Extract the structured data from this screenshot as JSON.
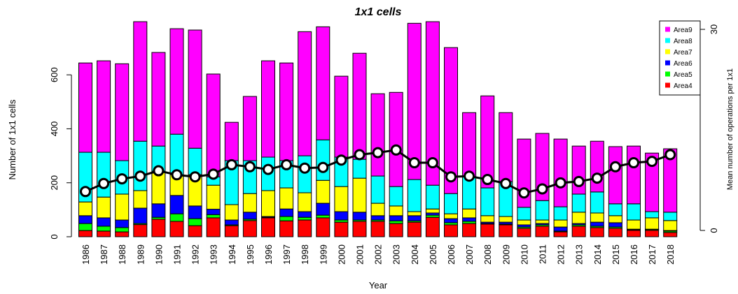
{
  "chart_data": {
    "type": "bar",
    "title": "1x1 cells",
    "x_label": "Year",
    "y_label": "Number of 1x1 cells",
    "y2_label": "Mean number of operations per 1x1",
    "categories": [
      "1986",
      "1987",
      "1988",
      "1989",
      "1990",
      "1991",
      "1992",
      "1993",
      "1994",
      "1995",
      "1996",
      "1997",
      "1998",
      "1999",
      "2000",
      "2001",
      "2002",
      "2003",
      "2004",
      "2005",
      "2006",
      "2007",
      "2008",
      "2009",
      "2010",
      "2011",
      "2012",
      "2013",
      "2014",
      "2015",
      "2016",
      "2017",
      "2018"
    ],
    "stacked": true,
    "series": [
      {
        "name": "Area4",
        "color": "#ff0000",
        "values": [
          23,
          21,
          18,
          45,
          65,
          57,
          41,
          70,
          41,
          60,
          70,
          59,
          62,
          70,
          54,
          57,
          57,
          49,
          54,
          72,
          44,
          49,
          47,
          44,
          31,
          39,
          18,
          39,
          34,
          31,
          24,
          24,
          16
        ]
      },
      {
        "name": "Area5",
        "color": "#00ff00",
        "values": [
          26,
          18,
          16,
          4,
          7,
          28,
          26,
          12,
          3,
          5,
          2,
          16,
          10,
          10,
          8,
          5,
          5,
          10,
          5,
          8,
          8,
          8,
          2,
          3,
          5,
          5,
          3,
          5,
          5,
          5,
          2,
          3,
          5
        ]
      },
      {
        "name": "Area6",
        "color": "#0000ff",
        "values": [
          29,
          31,
          28,
          57,
          50,
          68,
          47,
          20,
          18,
          26,
          3,
          28,
          21,
          44,
          31,
          29,
          16,
          19,
          19,
          8,
          15,
          13,
          5,
          7,
          8,
          5,
          15,
          5,
          15,
          16,
          2,
          1,
          2
        ]
      },
      {
        "name": "Area7",
        "color": "#ffff00",
        "values": [
          51,
          77,
          96,
          65,
          121,
          77,
          116,
          89,
          57,
          69,
          96,
          78,
          70,
          85,
          93,
          126,
          46,
          36,
          15,
          15,
          18,
          33,
          24,
          21,
          18,
          13,
          26,
          42,
          34,
          26,
          34,
          42,
          37
        ]
      },
      {
        "name": "Area8",
        "color": "#00ffff",
        "values": [
          184,
          166,
          124,
          183,
          93,
          150,
          98,
          31,
          163,
          122,
          124,
          101,
          137,
          150,
          109,
          70,
          101,
          72,
          119,
          88,
          75,
          119,
          103,
          129,
          47,
          72,
          49,
          67,
          78,
          44,
          60,
          23,
          31
        ]
      },
      {
        "name": "Area9",
        "color": "#ff00ff",
        "values": [
          331,
          339,
          359,
          443,
          347,
          391,
          438,
          381,
          142,
          238,
          357,
          362,
          460,
          419,
          300,
          393,
          305,
          349,
          579,
          606,
          541,
          238,
          341,
          256,
          253,
          249,
          251,
          178,
          188,
          212,
          214,
          217,
          235
        ]
      },
      {
        "type": "line",
        "axis": "y2",
        "color": "#000000",
        "values": [
          5.8,
          7.0,
          7.7,
          8.1,
          8.9,
          8.3,
          8.0,
          8.4,
          9.8,
          9.5,
          9.1,
          9.8,
          9.3,
          9.4,
          10.5,
          11.3,
          11.6,
          12.0,
          10.1,
          10.1,
          8.0,
          8.1,
          7.6,
          7.0,
          5.6,
          6.2,
          7.1,
          7.3,
          7.8,
          9.5,
          10.1,
          10.3,
          11.3
        ]
      }
    ],
    "ylim": [
      0,
      810
    ],
    "yticks": [
      0,
      200,
      400,
      600
    ],
    "y2lim": [
      -0.94,
      31.67
    ],
    "y2ticks": [
      0,
      30
    ],
    "legend": "top-right"
  }
}
